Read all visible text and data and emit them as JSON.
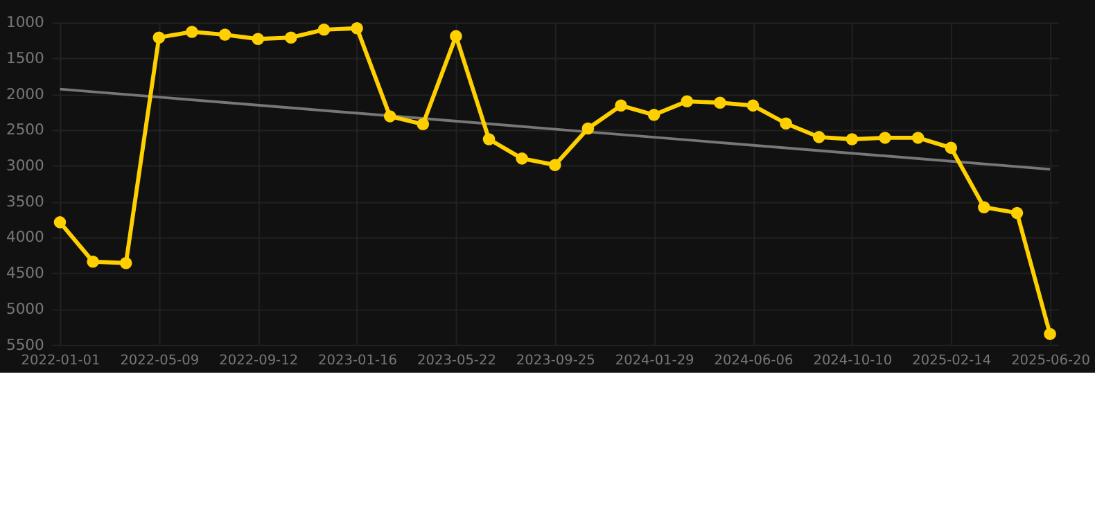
{
  "chart_data": {
    "type": "line",
    "categories": [
      "2022-01-01",
      null,
      null,
      "2022-05-09",
      null,
      null,
      "2022-09-12",
      null,
      null,
      "2023-01-16",
      null,
      null,
      "2023-05-22",
      null,
      null,
      "2023-09-25",
      null,
      null,
      "2024-01-29",
      null,
      null,
      "2024-06-06",
      null,
      null,
      "2024-10-10",
      null,
      null,
      "2025-02-14",
      null,
      null,
      "2025-06-20"
    ],
    "series": [
      {
        "color": "#ffd000",
        "marker": "circle",
        "values": [
          3790,
          4340,
          4360,
          1210,
          1130,
          1170,
          1230,
          1210,
          1100,
          1080,
          2310,
          2420,
          1190,
          2630,
          2900,
          2990,
          2480,
          2160,
          2290,
          2100,
          2120,
          2160,
          2410,
          2600,
          2630,
          2610,
          2610,
          2750,
          3580,
          3660,
          5350
        ]
      },
      {
        "type": "line",
        "color": "#777777",
        "marker": "none",
        "values": [
          1930,
          null,
          null,
          null,
          null,
          null,
          null,
          null,
          null,
          null,
          null,
          null,
          null,
          null,
          null,
          null,
          null,
          null,
          null,
          null,
          null,
          null,
          null,
          null,
          null,
          null,
          null,
          null,
          null,
          null,
          3050
        ]
      }
    ],
    "ylim": [
      5500,
      1000
    ],
    "yticks": [
      1000,
      1500,
      2000,
      2500,
      3000,
      3500,
      4000,
      4500,
      5000,
      5500
    ],
    "grid": true
  }
}
